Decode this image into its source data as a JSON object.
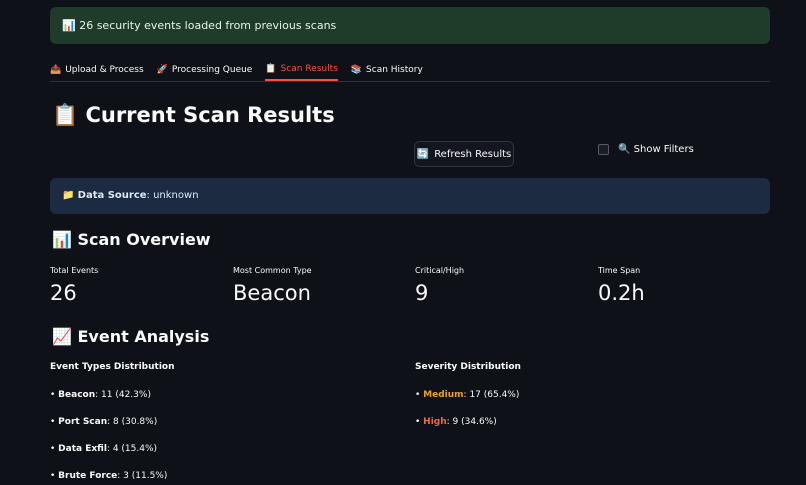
{
  "alert": {
    "icon": "bar-chart-icon",
    "text": "26 security events loaded from previous scans"
  },
  "tabs": [
    {
      "label": "Upload & Process",
      "icon": "outbox-icon"
    },
    {
      "label": "Processing Queue",
      "icon": "rocket-icon"
    },
    {
      "label": "Scan Results",
      "icon": "clipboard-icon",
      "active": true
    },
    {
      "label": "Scan History",
      "icon": "books-icon"
    }
  ],
  "title": "Current Scan Results",
  "title_icon": "clipboard-icon",
  "refresh_label": "Refresh Results",
  "filters_label": "Show Filters",
  "filters_checked": false,
  "data_source": {
    "label": "Data Source",
    "value": ": unknown"
  },
  "overview": {
    "title": "Scan Overview",
    "metrics": [
      {
        "label": "Total Events",
        "value": "26"
      },
      {
        "label": "Most Common Type",
        "value": "Beacon"
      },
      {
        "label": "Critical/High",
        "value": "9"
      },
      {
        "label": "Time Span",
        "value": "0.2h"
      }
    ]
  },
  "analysis": {
    "title": "Event Analysis",
    "types": {
      "title": "Event Types Distribution",
      "items": [
        {
          "name": "Beacon",
          "value": ": 11 (42.3%)"
        },
        {
          "name": "Port Scan",
          "value": ": 8 (30.8%)"
        },
        {
          "name": "Data Exfil",
          "value": ": 4 (15.4%)"
        },
        {
          "name": "Brute Force",
          "value": ": 3 (11.5%)"
        }
      ]
    },
    "severity": {
      "title": "Severity Distribution",
      "items": [
        {
          "name": "Medium",
          "value": ": 17 (65.4%)",
          "color": "#e8a317"
        },
        {
          "name": "High",
          "value": ": 9 (34.6%)",
          "color": "#f06a3c"
        }
      ]
    }
  },
  "colors": {
    "accent": "#ff4b4b",
    "background": "#0e1117"
  }
}
